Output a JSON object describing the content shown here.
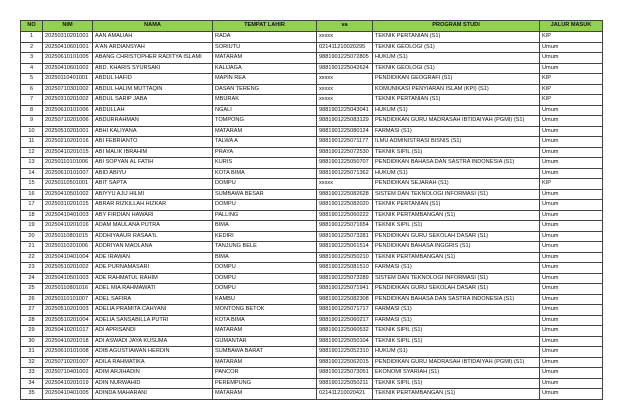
{
  "header": {
    "columns": [
      "NO",
      "NIM",
      "NAMA",
      "TEMPAT LAHIR",
      "va",
      "PROGRAM STUDI",
      "JALUR MASUK"
    ]
  },
  "colors": {
    "header_bg": "#92d050",
    "border": "#444444"
  },
  "rows": [
    [
      "1",
      "20250310201001",
      "AAN AMALIAH",
      "RADA",
      "xxxxx",
      "TEKNIK PERTANIAN (S1)",
      "KIP"
    ],
    [
      "2",
      "20250410601001",
      "A'AN ARDIANSYAH",
      "SORIUTU",
      "021411210020295",
      "TEKNIK GEOLOGI (S1)",
      "Umum"
    ],
    [
      "3",
      "20250610101005",
      "ABANG CHRISTOPHER RADITYA ISLAMI",
      "MATARAM",
      "9881901225072805",
      "HUKUM (S1)",
      "Umum"
    ],
    [
      "4",
      "20250410601002",
      "ABD. KHARIS SYURSAKI",
      "KALIJAGA",
      "9881901225042624",
      "TEKNIK GEOLOGI (S1)",
      "Umum"
    ],
    [
      "5",
      "20250110401001",
      "ABDUL HAFID",
      "MAPIN REA",
      "xxxxx",
      "PENDIDIKAN GEOGRAFI (S1)",
      "KIP"
    ],
    [
      "6",
      "20250710301002",
      "ABDUL HALIM MUTTAQIN",
      "DASAN TERENG",
      "xxxxx",
      "KOMUNIKASI PENYIARAN ISLAM (KPI) (S1)",
      "KIP"
    ],
    [
      "7",
      "20250310201002",
      "ABDUL SARIP JABA",
      "MBURAK",
      "xxxxx",
      "TEKNIK PERTANIAN (S1)",
      "KIP"
    ],
    [
      "8",
      "20250610101006",
      "ABDULLAH",
      "NGALI",
      "9881901225043041",
      "HUKUM (S1)",
      "Umum"
    ],
    [
      "9",
      "20250710201006",
      "ABDURRAHMAN",
      "TOMPONG",
      "9881901225083129",
      "PENDIDIKAN GURU MADRASAH IBTIDAIYAH (PGMI) (S1)",
      "Umum"
    ],
    [
      "10",
      "20250510201001",
      "ABHI KALIYANA",
      "MATARAM",
      "9881901225080124",
      "FARMASI (S1)",
      "Umum"
    ],
    [
      "11",
      "20250210201016",
      "ABI FEBRIANTO",
      "TALWA A",
      "9881901225071177",
      "ILMU ADMINISTRASI BISNIS (S1)",
      "Umum"
    ],
    [
      "12",
      "20250410201015",
      "ABI MALIK IBRAHIM",
      "PRAYA",
      "9881901225072530",
      "TEKNIK SIPIL (S1)",
      "Umum"
    ],
    [
      "13",
      "20250110101006",
      "ABI SOPYAN AL FATIH",
      "KURIS",
      "9881901225050707",
      "PENDIDIKAN BAHASA DAN SASTRA INDONESIA (S1)",
      "Umum"
    ],
    [
      "14",
      "20250610101007",
      "ABID ABIYU",
      "KOTA BIMA",
      "9881901225071362",
      "HUKUM (S1)",
      "Umum"
    ],
    [
      "15",
      "20250110501001",
      "ABIT SAPTA",
      "DOMPU",
      "xxxxx",
      "PENDIDIKAN SEJARAH (S1)",
      "KIP"
    ],
    [
      "16",
      "20250410501002",
      "ABIYYU AJIJ HILMI",
      "SUMBAWA BESAR",
      "9881901225082628",
      "SISTEM DAN TEKNOLOGI INFORMASI (S1)",
      "Umum"
    ],
    [
      "17",
      "20250310201015",
      "ABRAR RIZKILLAH HIZKAR",
      "DOMPU",
      "9881901225082020",
      "TEKNIK PERTANIAN (S1)",
      "Umum"
    ],
    [
      "18",
      "20250410401003",
      "ABY FIRDIAN HAWARI",
      "PALLING",
      "9881901225060222",
      "TEKNIK PERTAMBANGAN (S1)",
      "Umum"
    ],
    [
      "19",
      "20250410201016",
      "ADAM MAULANA PUTRA",
      "BIMA",
      "9881901225071654",
      "TEKNIK SIPIL (S1)",
      "Umum"
    ],
    [
      "20",
      "20250110801015",
      "ADDHIYAAUR RASAA'IL",
      "KEDIRI",
      "9881901225073281",
      "PENDIDIKAN GURU SEKOLAH DASAR (S1)",
      "Umum"
    ],
    [
      "21",
      "20250110201006",
      "ADDRIYAN MAOLANA",
      "TANJUNG BELE",
      "9881901225061514",
      "PENDIDIKAN BAHASA INGGRIS (S1)",
      "Umum"
    ],
    [
      "22",
      "20250410401004",
      "ADE IRAWAN",
      "BIMA",
      "9881901225050210",
      "TEKNIK PERTAMBANGAN (S1)",
      "Umum"
    ],
    [
      "23",
      "20250510201002",
      "ADE PURNAMASARI",
      "DOMPU",
      "9881901225081510",
      "FARMASI (S1)",
      "Umum"
    ],
    [
      "24",
      "20250410501003",
      "ADE RAHMATUL RAHIM",
      "DOMPU",
      "9881901225073289",
      "SISTEM DAN TEKNOLOGI INFORMASI (S1)",
      "Umum"
    ],
    [
      "25",
      "20250110801016",
      "ADEL MIA RAHMAWATI",
      "DOMPU",
      "9881901225071941",
      "PENDIDIKAN GURU SEKOLAH DASAR (S1)",
      "Umum"
    ],
    [
      "26",
      "20250110101007",
      "ADEL SAFIRA",
      "KAMBU",
      "9881901225082308",
      "PENDIDIKAN BAHASA DAN SASTRA INDONESIA (S1)",
      "Umum"
    ],
    [
      "27",
      "20250510201003",
      "ADELIA PRAMITA CAHYANI",
      "MONTONG BETOK",
      "9881901225071717",
      "FARMASI (S1)",
      "Umum"
    ],
    [
      "28",
      "20250510201004",
      "ADELIA SANSABILLA PUTRI",
      "KOTA BIMA",
      "9881901225060217",
      "FARMASI (S1)",
      "Umum"
    ],
    [
      "29",
      "20250410201017",
      "ADI APRISANDI",
      "MATARAM",
      "9881901225060532",
      "TEKNIK SIPIL (S1)",
      "Umum"
    ],
    [
      "30",
      "20250410201018",
      "ADI ASWADI JAYA KUSUMA",
      "GUMANTAR",
      "9881901225050104",
      "TEKNIK SIPIL (S1)",
      "Umum"
    ],
    [
      "31",
      "20250610101008",
      "ADIB AGUSTIAWAN HERDIN",
      "SUMBAWA BARAT",
      "9881901225052310",
      "HUKUM (S1)",
      "Umum"
    ],
    [
      "32",
      "20250710201007",
      "ADILA RAHMATIKA",
      "MATARAM",
      "9881901225062015",
      "PENDIDIKAN GURU MADRASAH IBTIDAIYAH (PGMI) (S1)",
      "Umum"
    ],
    [
      "33",
      "20250710401002",
      "ADIM ARJIHADIN",
      "PANCOR",
      "9881901225073051",
      "EKONOMI SYARIAH (S1)",
      "Umum"
    ],
    [
      "34",
      "20250410201019",
      "ADIN NURWAHID",
      "PEREMPUNG",
      "9881901225050211",
      "TEKNIK SIPIL (S1)",
      "Umum"
    ],
    [
      "35",
      "20250410401005",
      "ADINDA MAHARANI",
      "MATARAM",
      "021411210020421",
      "TEKNIK PERTAMBANGAN (S1)",
      "Umum"
    ]
  ]
}
